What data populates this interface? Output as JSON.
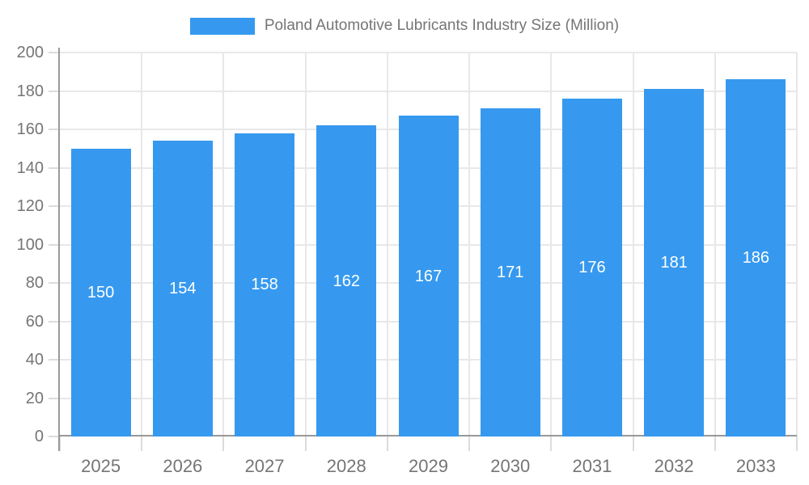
{
  "chart_data": {
    "type": "bar",
    "title": "Poland Automotive Lubricants Industry Size (Million)",
    "legend": {
      "label": "Poland Automotive Lubricants Industry Size (Million)",
      "position": "top-center"
    },
    "categories": [
      "2025",
      "2026",
      "2027",
      "2028",
      "2029",
      "2030",
      "2031",
      "2032",
      "2033"
    ],
    "values": [
      150,
      154,
      158,
      162,
      167,
      171,
      176,
      181,
      186
    ],
    "xlabel": "",
    "ylabel": "",
    "ylim": [
      0,
      200
    ],
    "ytick_step": 20,
    "ytick_labels": [
      "0",
      "20",
      "40",
      "60",
      "80",
      "100",
      "120",
      "140",
      "160",
      "180",
      "200"
    ],
    "grid": true,
    "bar_value_labels_inside": true
  },
  "colors": {
    "bar": "#3699EF",
    "axis": "#999999",
    "grid": "#E8E8E8",
    "tick": "#DCDCDC",
    "text": "#757575",
    "bar_label": "#FFFFFF",
    "background": "#FFFFFF"
  }
}
